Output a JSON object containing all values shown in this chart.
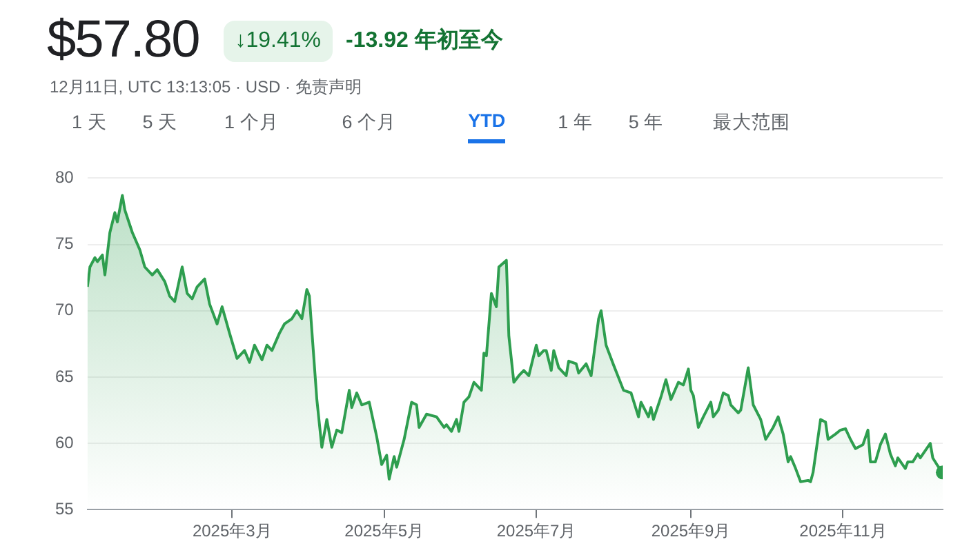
{
  "chart_data": {
    "type": "area",
    "title": "$57.80",
    "subtitle": "12月11日, UTC 13:13:05 · USD · 免责声明",
    "annotations": [
      "↓19.41%",
      "-13.92 年初至今",
      "1 天",
      "5 天",
      "1 个月",
      "6 个月",
      "YTD",
      "1 年",
      "5 年",
      "最大范围"
    ],
    "xlim": [
      "2025-01-02",
      "2025-12-11"
    ],
    "xticks": [
      {
        "value": "2025-03-01",
        "label": "2025年3月"
      },
      {
        "value": "2025-05-01",
        "label": "2025年5月"
      },
      {
        "value": "2025-07-01",
        "label": "2025年7月"
      },
      {
        "value": "2025-09-01",
        "label": "2025年9月"
      },
      {
        "value": "2025-11-01",
        "label": "2025年11月"
      }
    ],
    "ylim": [
      55,
      80
    ],
    "yticks": [
      55,
      60,
      65,
      70,
      75,
      80
    ],
    "grid": "y",
    "legend": false,
    "series": [
      {
        "color": "#2e9e4f",
        "x": [
          "2025-01-02",
          "2025-01-03",
          "2025-01-05",
          "2025-01-06",
          "2025-01-08",
          "2025-01-09",
          "2025-01-11",
          "2025-01-13",
          "2025-01-14",
          "2025-01-16",
          "2025-01-17",
          "2025-01-20",
          "2025-01-23",
          "2025-01-25",
          "2025-01-28",
          "2025-01-30",
          "2025-02-02",
          "2025-02-04",
          "2025-02-06",
          "2025-02-09",
          "2025-02-11",
          "2025-02-13",
          "2025-02-15",
          "2025-02-18",
          "2025-02-20",
          "2025-02-23",
          "2025-02-25",
          "2025-02-28",
          "2025-03-03",
          "2025-03-06",
          "2025-03-08",
          "2025-03-10",
          "2025-03-13",
          "2025-03-15",
          "2025-03-17",
          "2025-03-20",
          "2025-03-22",
          "2025-03-25",
          "2025-03-27",
          "2025-03-29",
          "2025-03-31",
          "2025-04-01",
          "2025-04-04",
          "2025-04-06",
          "2025-04-08",
          "2025-04-10",
          "2025-04-12",
          "2025-04-14",
          "2025-04-17",
          "2025-04-18",
          "2025-04-20",
          "2025-04-22",
          "2025-04-25",
          "2025-04-28",
          "2025-04-30",
          "2025-05-02",
          "2025-05-03",
          "2025-05-05",
          "2025-05-06",
          "2025-05-09",
          "2025-05-12",
          "2025-05-14",
          "2025-05-15",
          "2025-05-18",
          "2025-05-22",
          "2025-05-25",
          "2025-05-26",
          "2025-05-28",
          "2025-05-30",
          "2025-05-31",
          "2025-06-02",
          "2025-06-04",
          "2025-06-06",
          "2025-06-09",
          "2025-06-10",
          "2025-06-11",
          "2025-06-13",
          "2025-06-15",
          "2025-06-16",
          "2025-06-19",
          "2025-06-20",
          "2025-06-22",
          "2025-06-24",
          "2025-06-26",
          "2025-06-28",
          "2025-07-01",
          "2025-07-02",
          "2025-07-04",
          "2025-07-05",
          "2025-07-07",
          "2025-07-08",
          "2025-07-10",
          "2025-07-13",
          "2025-07-14",
          "2025-07-17",
          "2025-07-18",
          "2025-07-21",
          "2025-07-23",
          "2025-07-26",
          "2025-07-27",
          "2025-07-29",
          "2025-08-01",
          "2025-08-05",
          "2025-08-08",
          "2025-08-11",
          "2025-08-12",
          "2025-08-15",
          "2025-08-16",
          "2025-08-17",
          "2025-08-20",
          "2025-08-22",
          "2025-08-24",
          "2025-08-27",
          "2025-08-29",
          "2025-08-31",
          "2025-09-01",
          "2025-09-02",
          "2025-09-04",
          "2025-09-06",
          "2025-09-09",
          "2025-09-10",
          "2025-09-12",
          "2025-09-14",
          "2025-09-16",
          "2025-09-17",
          "2025-09-20",
          "2025-09-21",
          "2025-09-24",
          "2025-09-26",
          "2025-09-29",
          "2025-10-01",
          "2025-10-04",
          "2025-10-06",
          "2025-10-08",
          "2025-10-10",
          "2025-10-11",
          "2025-10-13",
          "2025-10-15",
          "2025-10-18",
          "2025-10-19",
          "2025-10-20",
          "2025-10-23",
          "2025-10-25",
          "2025-10-26",
          "2025-10-29",
          "2025-10-31",
          "2025-11-02",
          "2025-11-04",
          "2025-11-06",
          "2025-11-09",
          "2025-11-11",
          "2025-11-12",
          "2025-11-14",
          "2025-11-16",
          "2025-11-18",
          "2025-11-20",
          "2025-11-22",
          "2025-11-23",
          "2025-11-26",
          "2025-11-27",
          "2025-11-29",
          "2025-12-01",
          "2025-12-02",
          "2025-12-06",
          "2025-12-07",
          "2025-12-09",
          "2025-12-11"
        ],
        "values": [
          71.8,
          73.3,
          74.0,
          73.7,
          74.2,
          72.7,
          75.9,
          77.4,
          76.7,
          78.7,
          77.6,
          75.9,
          74.6,
          73.3,
          72.7,
          73.1,
          72.2,
          71.1,
          70.7,
          73.3,
          71.3,
          70.9,
          71.8,
          72.4,
          70.5,
          69.0,
          70.3,
          68.3,
          66.4,
          67.0,
          66.1,
          67.4,
          66.3,
          67.4,
          67.0,
          68.3,
          69.0,
          69.4,
          70.0,
          69.4,
          71.6,
          71.1,
          63.3,
          59.7,
          61.8,
          59.7,
          61.0,
          60.8,
          64.0,
          62.7,
          63.8,
          62.9,
          63.1,
          60.5,
          58.4,
          59.1,
          57.3,
          59.0,
          58.2,
          60.3,
          63.1,
          62.9,
          61.2,
          62.2,
          62.0,
          61.2,
          61.4,
          60.9,
          61.8,
          60.9,
          63.1,
          63.5,
          64.6,
          64.0,
          66.8,
          66.6,
          71.3,
          70.3,
          73.3,
          73.8,
          68.1,
          64.6,
          65.1,
          65.5,
          65.1,
          67.4,
          66.6,
          67.0,
          67.0,
          65.5,
          67.0,
          65.7,
          65.1,
          66.2,
          66.0,
          65.3,
          66.0,
          65.1,
          69.4,
          70.0,
          67.4,
          65.9,
          64.0,
          63.8,
          62.0,
          63.1,
          62.0,
          62.7,
          61.8,
          63.5,
          64.8,
          63.3,
          64.6,
          64.4,
          65.6,
          64.0,
          63.6,
          61.2,
          62.0,
          63.1,
          62.0,
          62.5,
          63.8,
          63.6,
          62.9,
          62.3,
          62.5,
          65.7,
          62.9,
          61.8,
          60.3,
          61.2,
          62.0,
          60.7,
          58.6,
          59.0,
          58.1,
          57.1,
          57.2,
          57.1,
          57.8,
          61.8,
          61.6,
          60.3,
          60.7,
          61.0,
          61.1,
          60.3,
          59.6,
          59.9,
          61.0,
          58.6,
          58.6,
          59.9,
          60.7,
          59.2,
          58.3,
          58.9,
          58.1,
          58.6,
          58.6,
          59.2,
          58.9,
          60.0,
          58.9,
          58.3,
          57.8
        ]
      }
    ]
  }
}
